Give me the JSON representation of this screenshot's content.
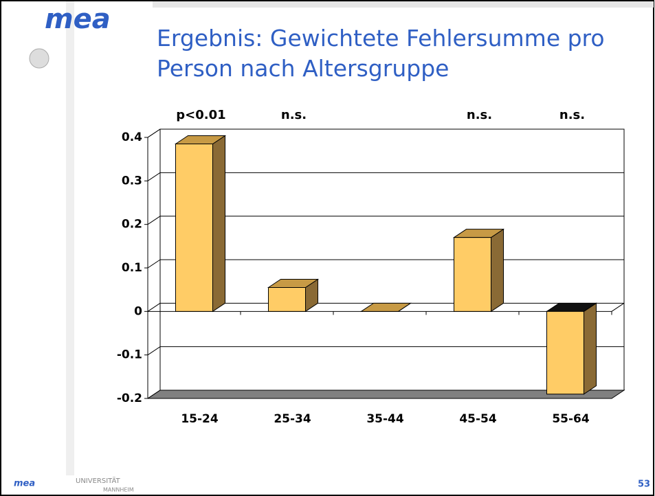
{
  "header": {
    "logo": "mea",
    "title": "Ergebnis: Gewichtete Fehlersumme pro Person nach Altersgruppe"
  },
  "chart_data": {
    "type": "bar3d",
    "categories": [
      "15-24",
      "25-34",
      "35-44",
      "45-54",
      "55-64"
    ],
    "values": [
      0.385,
      0.055,
      0,
      0.17,
      -0.19
    ],
    "annotations": [
      "p<0.01",
      "n.s.",
      null,
      "n.s.",
      "n.s."
    ],
    "color": "#ffcc66",
    "ylim": [
      -0.2,
      0.4
    ],
    "yticks": [
      -0.2,
      -0.1,
      0,
      0.1,
      0.2,
      0.3,
      0.4
    ],
    "grid": true
  },
  "footer": {
    "logo": "mea",
    "university": "UNIVERSITÄT",
    "city": "MANNHEIM",
    "page": "53"
  }
}
